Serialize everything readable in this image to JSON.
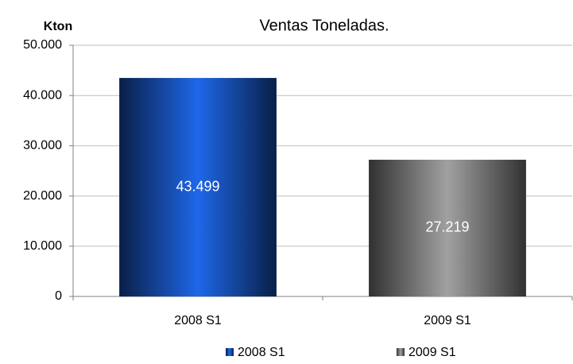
{
  "chart_data": {
    "type": "bar",
    "title": "Ventas  Toneladas.",
    "y_label": "Kton",
    "categories": [
      "2008 S1",
      "2009 S1"
    ],
    "values": [
      43499,
      27219
    ],
    "value_labels": [
      "43.499",
      "27.219"
    ],
    "colors": [
      "#1a5acb",
      "#8c8c8c"
    ],
    "ylim": [
      0,
      50000
    ],
    "yticks": [
      0,
      {
        "value": 10000,
        "label": "10.000"
      },
      {
        "value": 20000,
        "label": "20.000"
      },
      {
        "value": 30000,
        "label": "30.000"
      },
      {
        "value": 40000,
        "label": "40.000"
      },
      {
        "value": 50000,
        "label": "50.000"
      }
    ],
    "grid": true,
    "legend": "bottom"
  }
}
